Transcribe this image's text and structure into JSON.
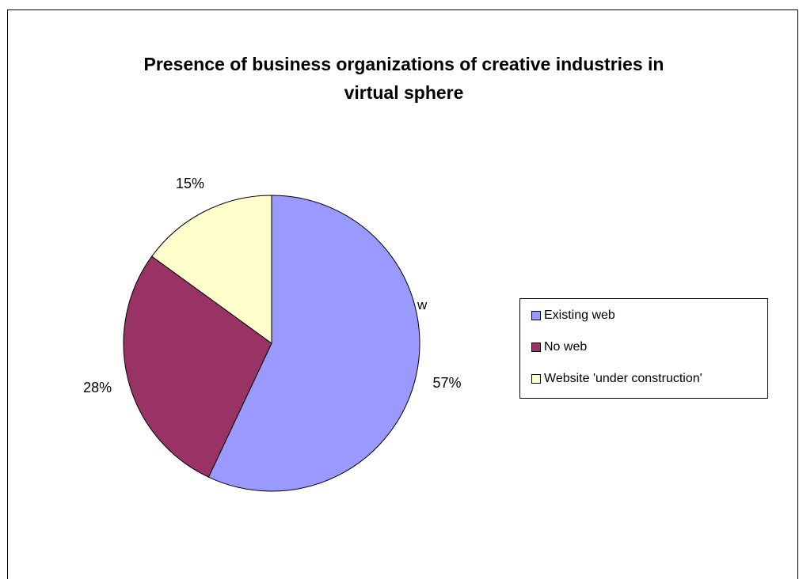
{
  "chart_data": {
    "type": "pie",
    "title": "Presence of business organizations of creative industries in\nvirtual sphere",
    "slices": [
      {
        "name": "Existing web",
        "value": 57,
        "label": "57%",
        "color": "#9999ff"
      },
      {
        "name": "No web",
        "value": 28,
        "label": "28%",
        "color": "#993366"
      },
      {
        "name": "Website 'under construction'",
        "value": 15,
        "label": "15%",
        "color": "#ffffcc"
      }
    ],
    "legend_position": "right",
    "stray_text": "w"
  }
}
